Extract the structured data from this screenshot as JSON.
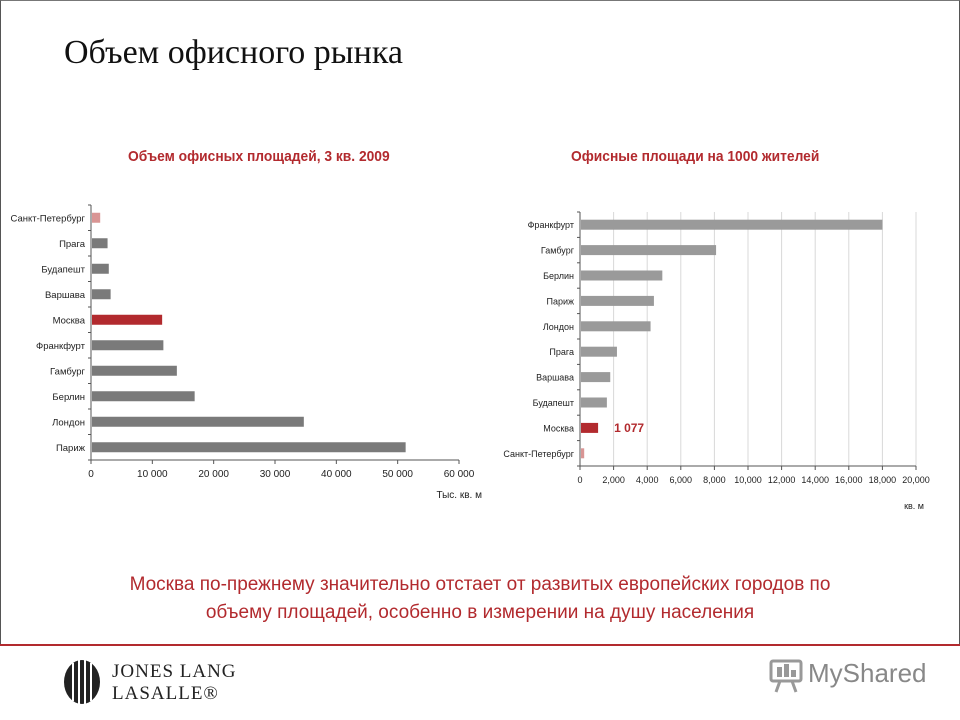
{
  "slide": {
    "title": "Объем офисного рынка",
    "caption_line1": "Москва по-прежнему значительно отстает от развитых европейских городов по",
    "caption_line2": "объему площадей, особенно в измерении на душу населения"
  },
  "colors": {
    "accent": "#b22a2e",
    "bar_gray": "#7a7a7a",
    "bar_light_gray": "#9a9a9a",
    "bar_pink": "#d99594"
  },
  "chart_data": [
    {
      "type": "bar",
      "orientation": "horizontal",
      "title": "Объем офисных площадей, 3 кв. 2009",
      "xlabel": "Тыс. кв. м",
      "categories": [
        "Санкт-Петербург",
        "Прага",
        "Будапешт",
        "Варшава",
        "Москва",
        "Франкфурт",
        "Гамбург",
        "Берлин",
        "Лондон",
        "Париж"
      ],
      "values": [
        1500,
        2700,
        2900,
        3200,
        11600,
        11800,
        14000,
        16900,
        34700,
        51300
      ],
      "highlight": {
        "Москва": "accent",
        "Санкт-Петербург": "pink"
      },
      "xlim": [
        0,
        60000
      ],
      "ticks": [
        0,
        10000,
        20000,
        30000,
        40000,
        50000,
        60000
      ],
      "tick_labels": [
        "0",
        "10 000",
        "20 000",
        "30 000",
        "40 000",
        "50 000",
        "60 000"
      ],
      "grid": false
    },
    {
      "type": "bar",
      "orientation": "horizontal",
      "title": "Офисные площади на 1000 жителей",
      "xlabel": "кв. м",
      "categories": [
        "Франкфурт",
        "Гамбург",
        "Берлин",
        "Париж",
        "Лондон",
        "Прага",
        "Варшава",
        "Будапешт",
        "Москва",
        "Санкт-Петербург"
      ],
      "values": [
        18000,
        8100,
        4900,
        4400,
        4200,
        2200,
        1800,
        1600,
        1077,
        250
      ],
      "highlight": {
        "Москва": "accent",
        "Санкт-Петербург": "pink"
      },
      "annotations": [
        {
          "category": "Москва",
          "text": "1 077"
        }
      ],
      "xlim": [
        0,
        20000
      ],
      "ticks": [
        0,
        2000,
        4000,
        6000,
        8000,
        10000,
        12000,
        14000,
        16000,
        18000,
        20000
      ],
      "tick_labels": [
        "0",
        "2,000",
        "4,000",
        "6,000",
        "8,000",
        "10,000",
        "12,000",
        "14,000",
        "16,000",
        "18,000",
        "20,000"
      ],
      "grid": true
    }
  ],
  "logo": {
    "line1": "JONES LANG",
    "line2": "LASALLE®"
  },
  "watermark": {
    "text": "MyShared",
    "icon": "presentation-board-icon"
  }
}
